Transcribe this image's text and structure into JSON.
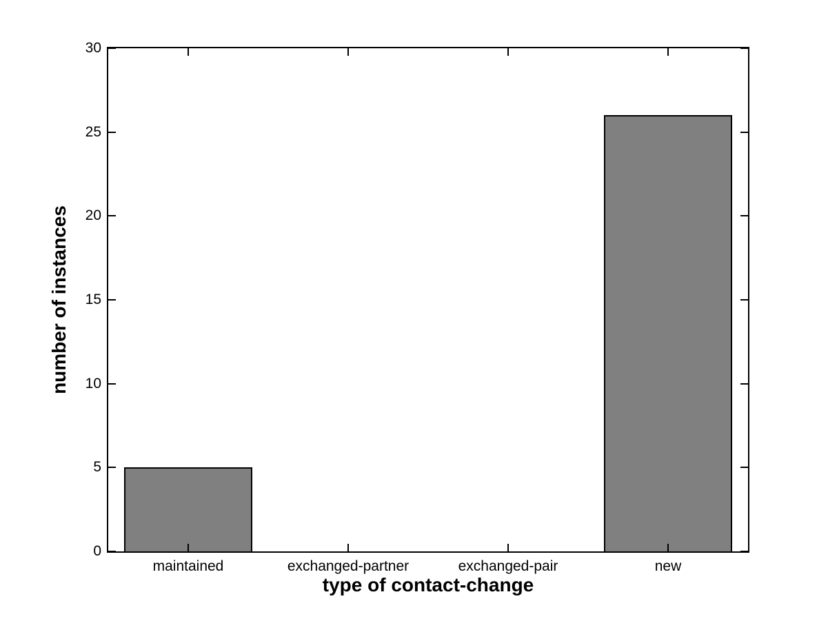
{
  "figure": {
    "background": "#ffffff",
    "axis_color": "#000000"
  },
  "chart_data": {
    "type": "bar",
    "categories": [
      "maintained",
      "exchanged-partner",
      "exchanged-pair",
      "new"
    ],
    "values": [
      5,
      0,
      0,
      26
    ],
    "title": "",
    "xlabel": "type of contact-change",
    "ylabel": "number of instances",
    "ylim": [
      0,
      30
    ],
    "yticks": [
      0,
      5,
      10,
      15,
      20,
      25,
      30
    ],
    "bar_color": "#808080",
    "bar_edge_color": "#000000",
    "bar_width_fraction": 0.8,
    "grid": false,
    "legend": null,
    "tick_direction": "in",
    "box": true
  }
}
